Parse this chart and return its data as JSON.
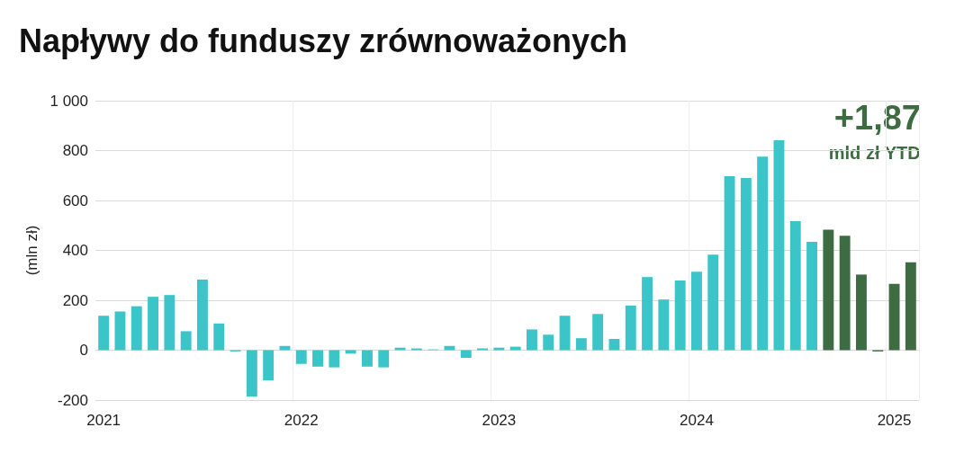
{
  "chart_data": {
    "type": "bar",
    "title": "Napływy do funduszy zrównoważonych",
    "ylabel": "(mln zł)",
    "annotations": [
      "+1,87",
      "mld zł YTD"
    ],
    "categories": [
      "2021",
      null,
      null,
      null,
      null,
      null,
      null,
      null,
      null,
      null,
      null,
      null,
      "2022",
      null,
      null,
      null,
      null,
      null,
      null,
      null,
      null,
      null,
      null,
      null,
      "2023",
      null,
      null,
      null,
      null,
      null,
      null,
      null,
      null,
      null,
      null,
      null,
      "2024",
      null,
      null,
      null,
      null,
      null,
      null,
      null,
      null,
      null,
      null,
      null,
      "2025",
      null
    ],
    "values": [
      138,
      155,
      176,
      214,
      221,
      76,
      283,
      107,
      -5,
      -186,
      -121,
      17,
      -55,
      -66,
      -69,
      -14,
      -66,
      -69,
      10,
      7,
      3,
      17,
      -31,
      7,
      10,
      14,
      83,
      62,
      138,
      48,
      145,
      45,
      179,
      293,
      203,
      279,
      314,
      383,
      697,
      690,
      776,
      841,
      517,
      434,
      483,
      459,
      303,
      -5,
      266,
      352
    ],
    "colors": [
      "#3cc5c8",
      "#3cc5c8",
      "#3cc5c8",
      "#3cc5c8",
      "#3cc5c8",
      "#3cc5c8",
      "#3cc5c8",
      "#3cc5c8",
      "#3cc5c8",
      "#3cc5c8",
      "#3cc5c8",
      "#3cc5c8",
      "#3cc5c8",
      "#3cc5c8",
      "#3cc5c8",
      "#3cc5c8",
      "#3cc5c8",
      "#3cc5c8",
      "#3cc5c8",
      "#3cc5c8",
      "#3cc5c8",
      "#3cc5c8",
      "#3cc5c8",
      "#3cc5c8",
      "#3cc5c8",
      "#3cc5c8",
      "#3cc5c8",
      "#3cc5c8",
      "#3cc5c8",
      "#3cc5c8",
      "#3cc5c8",
      "#3cc5c8",
      "#3cc5c8",
      "#3cc5c8",
      "#3cc5c8",
      "#3cc5c8",
      "#3cc5c8",
      "#3cc5c8",
      "#3cc5c8",
      "#3cc5c8",
      "#3cc5c8",
      "#3cc5c8",
      "#3cc5c8",
      "#3cc5c8",
      "#3d6b42",
      "#3d6b42",
      "#3d6b42",
      "#3d6b42",
      "#3d6b42",
      "#3d6b42"
    ],
    "ylim": [
      -200,
      1000
    ],
    "yticks": [
      {
        "value": -200,
        "label": "-200"
      },
      0,
      200,
      400,
      600,
      800,
      {
        "value": 1000,
        "label": "1 000"
      }
    ],
    "grid": true
  }
}
